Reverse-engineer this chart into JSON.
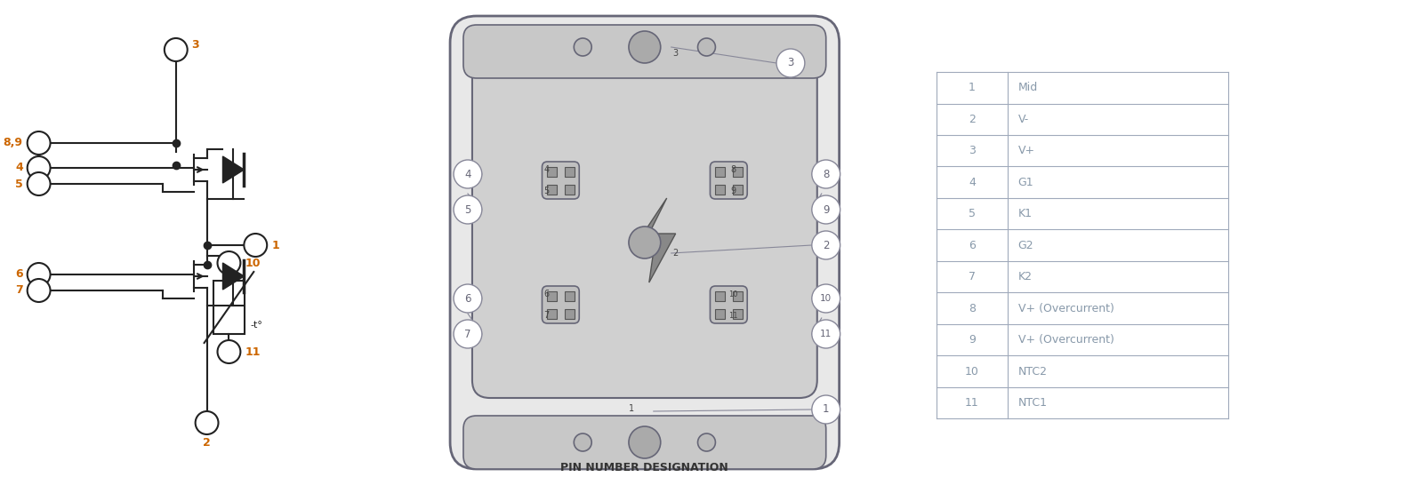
{
  "bg_color": "#ffffff",
  "line_color": "#000000",
  "table_line_color": "#a0aabb",
  "table_text_color": "#8899aa",
  "circuit_label_color": "#cc6600",
  "pin_rows": [
    [
      "1",
      "Mid"
    ],
    [
      "2",
      "V-"
    ],
    [
      "3",
      "V+"
    ],
    [
      "4",
      "G1"
    ],
    [
      "5",
      "K1"
    ],
    [
      "6",
      "G2"
    ],
    [
      "7",
      "K2"
    ],
    [
      "8",
      "V+ (Overcurrent)"
    ],
    [
      "9",
      "V+ (Overcurrent)"
    ],
    [
      "10",
      "NTC2"
    ],
    [
      "11",
      "NTC1"
    ]
  ],
  "title": "PIN NUMBER DESIGNATION",
  "module_label_color": "#666677",
  "diagram_color": "#222222"
}
